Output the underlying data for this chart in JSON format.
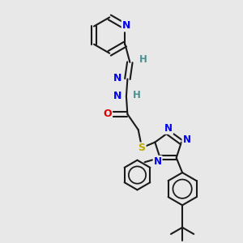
{
  "background_color": "#e8e8e8",
  "bond_color": "#1a1a1a",
  "atom_colors": {
    "N": "#0000ee",
    "O": "#dd0000",
    "S": "#bbaa00",
    "H": "#4a9090",
    "C": "#1a1a1a"
  },
  "figsize": [
    3.0,
    3.0
  ],
  "dpi": 100
}
